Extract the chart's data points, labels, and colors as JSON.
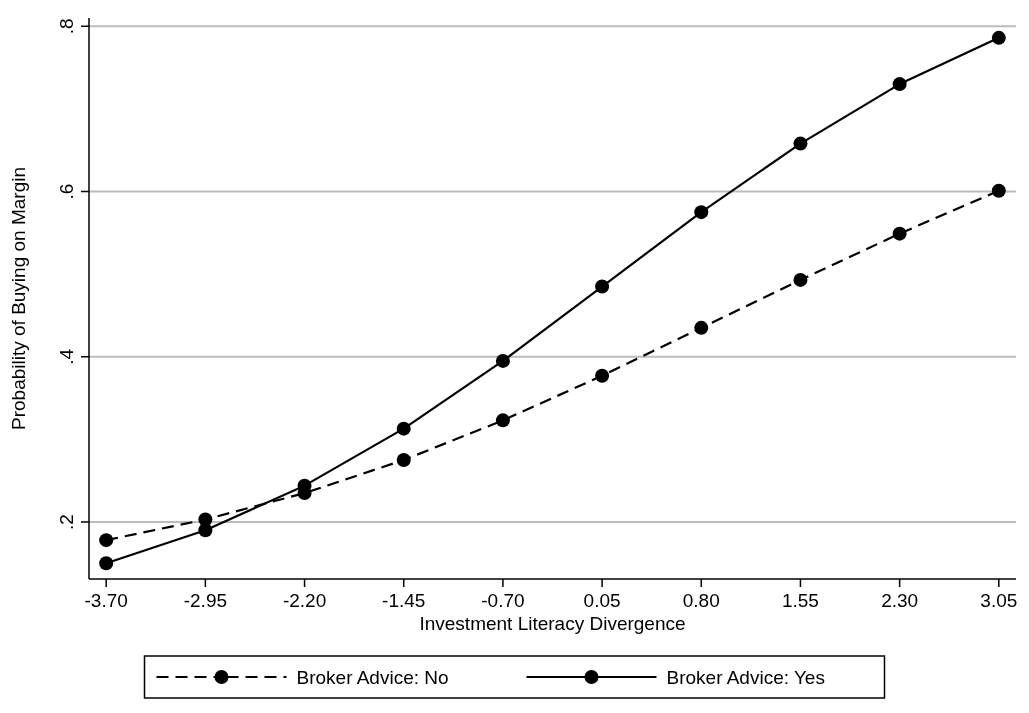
{
  "chart_data": {
    "type": "line",
    "xlabel": "Investment Literacy Divergence",
    "ylabel": "Probability of Buying on Margin",
    "x": [
      -3.7,
      -2.95,
      -2.2,
      -1.45,
      -0.7,
      0.05,
      0.8,
      1.55,
      2.3,
      3.05
    ],
    "series": [
      {
        "name": "Broker Advice: No",
        "color": "#000000",
        "line_style": "dashed",
        "values": [
          0.178,
          0.203,
          0.235,
          0.275,
          0.323,
          0.377,
          0.435,
          0.493,
          0.549,
          0.601
        ]
      },
      {
        "name": "Broker Advice: Yes",
        "color": "#000000",
        "line_style": "solid",
        "values": [
          0.15,
          0.19,
          0.244,
          0.313,
          0.395,
          0.485,
          0.575,
          0.658,
          0.73,
          0.786
        ]
      }
    ],
    "xlim": [
      -3.83,
      3.18
    ],
    "ylim": [
      0.131,
      0.81
    ],
    "xticks": [
      {
        "value": -3.7,
        "label": "-3.70"
      },
      {
        "value": -2.95,
        "label": "-2.95"
      },
      {
        "value": -2.2,
        "label": "-2.20"
      },
      {
        "value": -1.45,
        "label": "-1.45"
      },
      {
        "value": -0.7,
        "label": "-0.70"
      },
      {
        "value": 0.05,
        "label": "0.05"
      },
      {
        "value": 0.8,
        "label": "0.80"
      },
      {
        "value": 1.55,
        "label": "1.55"
      },
      {
        "value": 2.3,
        "label": "2.30"
      },
      {
        "value": 3.05,
        "label": "3.05"
      }
    ],
    "yticks": [
      {
        "value": 0.2,
        "label": ".2"
      },
      {
        "value": 0.4,
        "label": ".4"
      },
      {
        "value": 0.6,
        "label": ".6"
      },
      {
        "value": 0.8,
        "label": ".8"
      }
    ],
    "grid": "y",
    "legend": "bottom",
    "marker": "circle"
  }
}
